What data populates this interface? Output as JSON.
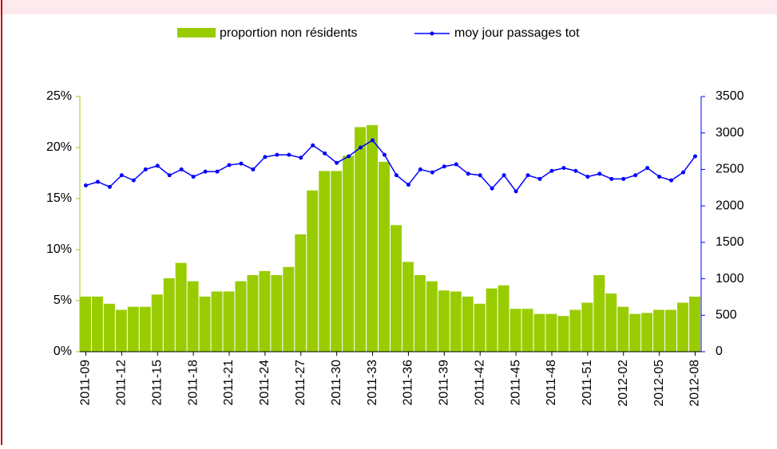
{
  "chart_data": {
    "type": "bar_line",
    "categories": [
      "2011-09",
      null,
      null,
      "2011-12",
      null,
      null,
      "2011-15",
      null,
      null,
      "2011-18",
      null,
      null,
      "2011-21",
      null,
      null,
      "2011-24",
      null,
      null,
      "2011-27",
      null,
      null,
      "2011-30",
      null,
      null,
      "2011-33",
      null,
      null,
      "2011-36",
      null,
      null,
      "2011-39",
      null,
      null,
      "2011-42",
      null,
      null,
      "2011-45",
      null,
      null,
      "2011-48",
      null,
      null,
      "2011-51",
      null,
      null,
      "2012-02",
      null,
      null,
      "2012-05",
      null,
      null,
      "2012-08"
    ],
    "series": [
      {
        "name": "proportion non résidents",
        "color": "#99cc00",
        "type": "bar",
        "values": [
          5.4,
          5.4,
          4.7,
          4.1,
          4.4,
          4.4,
          5.6,
          7.2,
          8.7,
          6.9,
          5.4,
          5.9,
          5.9,
          6.9,
          7.5,
          7.9,
          7.5,
          8.3,
          11.5,
          15.8,
          17.7,
          17.7,
          19.2,
          22.0,
          22.2,
          18.6,
          12.4,
          8.8,
          7.5,
          6.9,
          6.0,
          5.9,
          5.4,
          4.7,
          6.2,
          6.5,
          4.2,
          4.2,
          3.7,
          3.7,
          3.5,
          4.1,
          4.8,
          7.5,
          5.7,
          4.4,
          3.7,
          3.8,
          4.1,
          4.1,
          4.8,
          5.4
        ]
      },
      {
        "name": "moy jour passages tot",
        "color": "#0000ff",
        "type": "line",
        "axis": "y2",
        "values": [
          2280,
          2330,
          2260,
          2420,
          2350,
          2500,
          2550,
          2420,
          2500,
          2400,
          2470,
          2470,
          2560,
          2580,
          2500,
          2670,
          2700,
          2700,
          2660,
          2830,
          2720,
          2590,
          2680,
          2800,
          2900,
          2700,
          2420,
          2290,
          2500,
          2460,
          2540,
          2570,
          2440,
          2420,
          2240,
          2420,
          2200,
          2420,
          2370,
          2480,
          2520,
          2480,
          2400,
          2440,
          2370,
          2370,
          2420,
          2520,
          2400,
          2350,
          2460,
          2680
        ]
      }
    ],
    "ylim": [
      0,
      25
    ],
    "yticks": [
      {
        "value": 0,
        "label": "0%"
      },
      {
        "value": 5,
        "label": "5%"
      },
      {
        "value": 10,
        "label": "10%"
      },
      {
        "value": 15,
        "label": "15%"
      },
      {
        "value": 20,
        "label": "20%"
      },
      {
        "value": 25,
        "label": "25%"
      }
    ],
    "y2lim": [
      0,
      3500
    ],
    "y2ticks": [
      0,
      500,
      1000,
      1500,
      2000,
      2500,
      3000,
      3500
    ],
    "legend": "top"
  }
}
